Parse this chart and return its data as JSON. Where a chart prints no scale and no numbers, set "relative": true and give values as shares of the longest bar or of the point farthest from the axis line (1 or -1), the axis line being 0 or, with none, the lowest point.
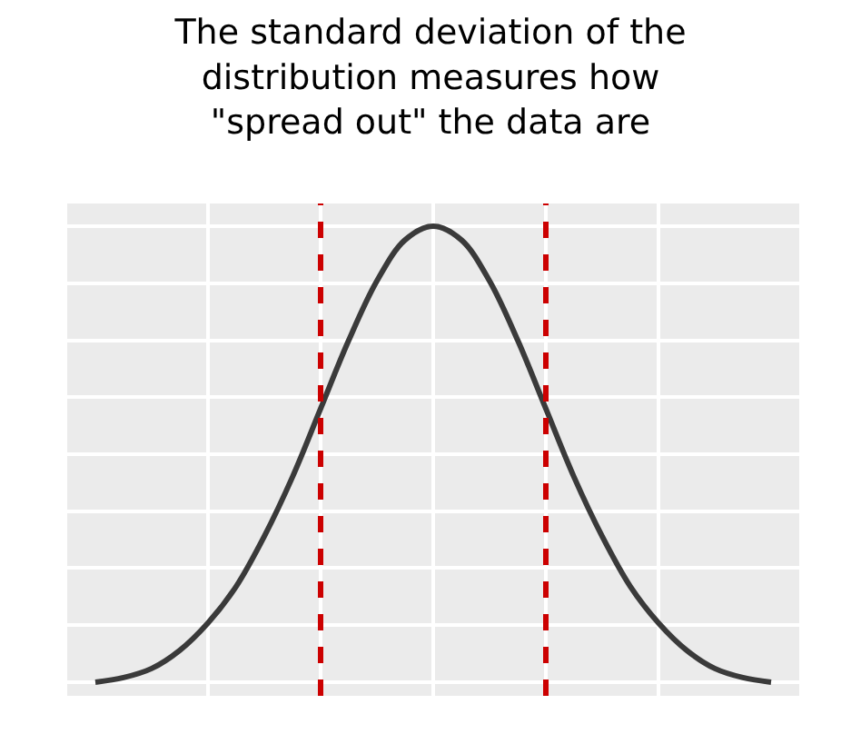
{
  "chart_data": {
    "type": "line",
    "title": "The standard deviation of the distribution measures how \"spread out\" the data are",
    "relative": true,
    "categories": [
      null,
      null,
      null,
      null,
      null,
      null,
      null,
      null,
      null,
      null,
      null,
      null,
      null,
      null,
      null,
      null,
      null,
      null,
      null,
      null,
      null,
      null,
      null,
      null,
      null
    ],
    "series": [
      {
        "color": "#3a3a3a",
        "values": [
          0,
          0.01,
          0.03,
          0.07,
          0.13,
          0.21,
          0.32,
          0.45,
          0.6,
          0.75,
          0.88,
          0.97,
          1,
          0.97,
          0.88,
          0.75,
          0.6,
          0.45,
          0.32,
          0.21,
          0.13,
          0.07,
          0.03,
          0.01,
          0
        ]
      }
    ],
    "grid": true,
    "marker": "none",
    "line_style": "solid"
  }
}
